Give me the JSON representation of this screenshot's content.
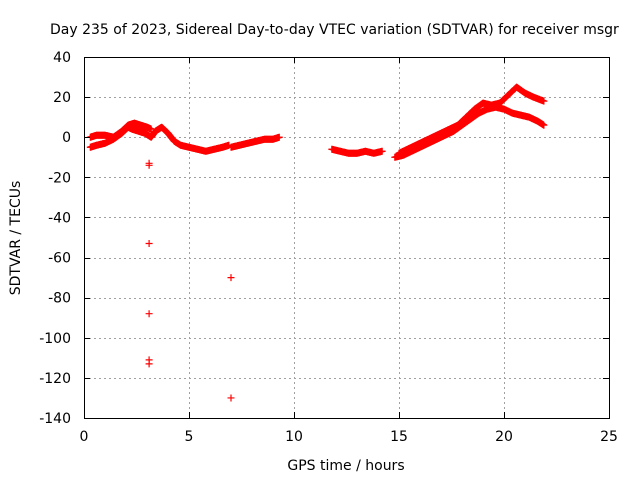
{
  "chart_data": {
    "type": "scatter",
    "title": "Day 235 of 2023, Sidereal Day-to-day VTEC variation (SDTVAR) for receiver msgr",
    "xlabel": "GPS time / hours",
    "ylabel": "SDTVAR / TECUs",
    "xlim": [
      0,
      25
    ],
    "ylim": [
      -140,
      40
    ],
    "xticks": [
      0,
      5,
      10,
      15,
      20,
      25
    ],
    "yticks": [
      40,
      20,
      0,
      -20,
      -40,
      -60,
      -80,
      -100,
      -120,
      -140
    ],
    "grid": true,
    "marker": "+",
    "color": "#ff0000",
    "series": [
      {
        "name": "SDTVAR",
        "segments": [
          {
            "x": [
              0.3,
              0.6,
              1.0,
              1.4,
              1.8,
              2.1,
              2.3,
              2.6,
              2.9,
              3.2,
              3.4,
              3.7,
              4.0,
              4.3,
              4.6,
              5.0,
              5.4,
              5.8,
              6.2,
              6.6,
              6.9
            ],
            "y": [
              -5,
              -4,
              -3,
              -1,
              2,
              5,
              4,
              3,
              2,
              0,
              3,
              5,
              2,
              -2,
              -4,
              -5,
              -6,
              -7,
              -6,
              -5,
              -4
            ]
          },
          {
            "x": [
              0.3,
              0.6,
              1.0,
              1.4,
              1.8,
              2.1,
              2.4,
              2.7,
              3.0,
              3.2
            ],
            "y": [
              0,
              1,
              1,
              0,
              3,
              6,
              7,
              6,
              5,
              4
            ]
          },
          {
            "x": [
              7.0,
              7.4,
              7.8,
              8.2,
              8.6,
              9.0,
              9.3
            ],
            "y": [
              -5,
              -4,
              -3,
              -2,
              -1,
              -1,
              0
            ]
          },
          {
            "x": [
              11.8,
              12.2,
              12.6,
              13.0,
              13.4,
              13.8,
              14.2
            ],
            "y": [
              -6,
              -7,
              -8,
              -8,
              -7,
              -8,
              -7
            ]
          },
          {
            "x": [
              14.8,
              15.2,
              15.6,
              16.0,
              16.4,
              16.8,
              17.2,
              17.6,
              18.0,
              18.4,
              18.8,
              19.2,
              19.6,
              20.0,
              20.4,
              20.8,
              21.2,
              21.6,
              21.9
            ],
            "y": [
              -10,
              -9,
              -7,
              -5,
              -3,
              -1,
              1,
              3,
              6,
              9,
              12,
              14,
              15,
              14,
              12,
              11,
              10,
              8,
              6
            ]
          },
          {
            "x": [
              15.0,
              15.4,
              15.8,
              16.2,
              16.6,
              17.0,
              17.4,
              17.8,
              18.2,
              18.6,
              19.0,
              19.4,
              19.8,
              20.2,
              20.6,
              21.0,
              21.4,
              21.9
            ],
            "y": [
              -8,
              -6,
              -4,
              -2,
              0,
              2,
              4,
              6,
              10,
              14,
              17,
              16,
              17,
              21,
              25,
              22,
              20,
              18
            ]
          }
        ],
        "isolated": [
          {
            "x": 3.1,
            "y": -13
          },
          {
            "x": 3.1,
            "y": -14
          },
          {
            "x": 3.1,
            "y": -53
          },
          {
            "x": 3.1,
            "y": -88
          },
          {
            "x": 3.1,
            "y": -111
          },
          {
            "x": 3.1,
            "y": -113
          },
          {
            "x": 7.0,
            "y": -70
          },
          {
            "x": 7.0,
            "y": -130
          }
        ]
      }
    ]
  }
}
